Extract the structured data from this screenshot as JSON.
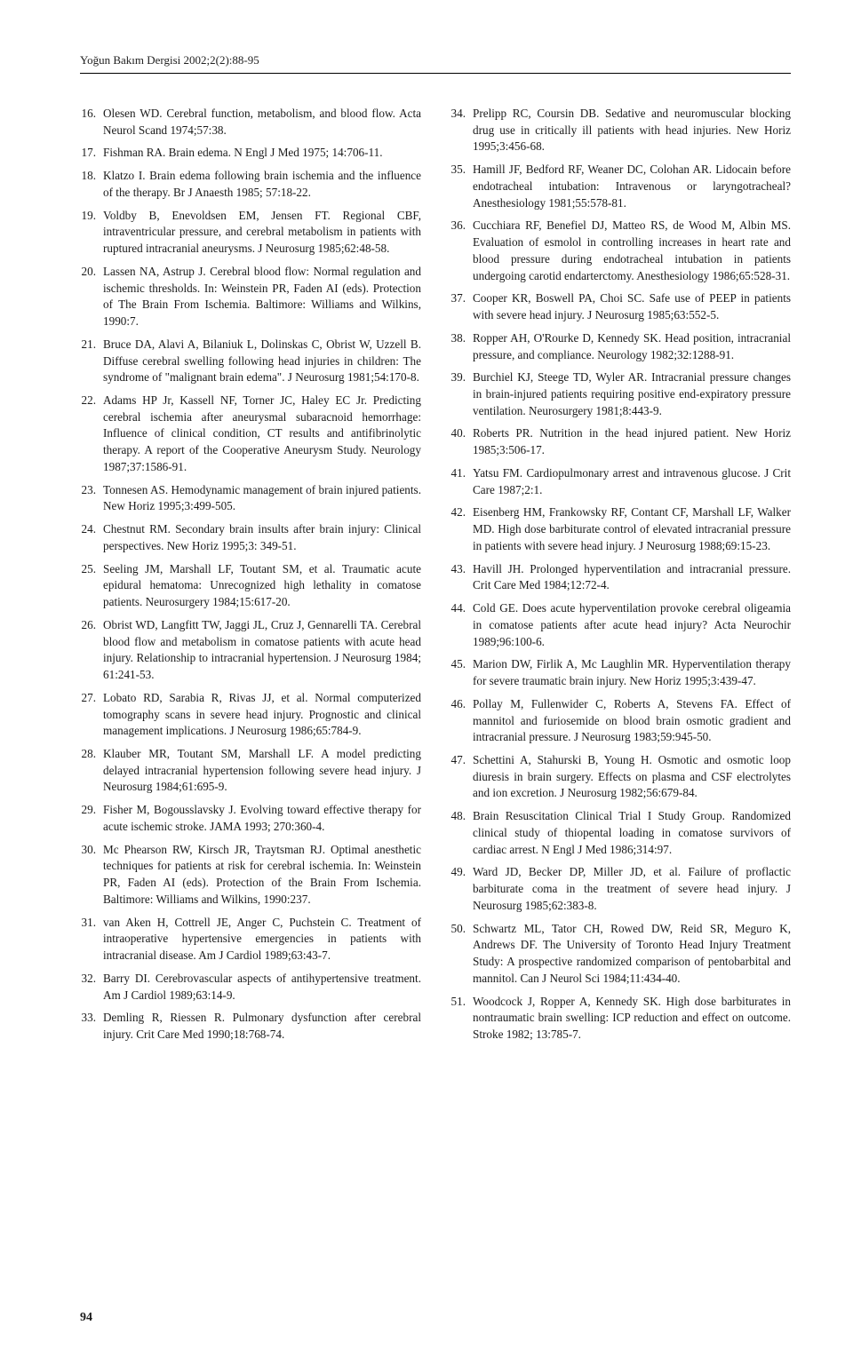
{
  "running_head": "Yoğun Bakım Dergisi 2002;2(2):88-95",
  "page_number": "94",
  "left_refs": [
    {
      "n": "16.",
      "t": "Olesen WD. Cerebral function, metabolism, and blood flow. Acta Neurol Scand 1974;57:38."
    },
    {
      "n": "17.",
      "t": "Fishman RA. Brain edema. N Engl J Med 1975; 14:706-11."
    },
    {
      "n": "18.",
      "t": "Klatzo I. Brain edema following brain ischemia and the influence of the therapy. Br J Anaesth 1985; 57:18-22."
    },
    {
      "n": "19.",
      "t": "Voldby B, Enevoldsen EM, Jensen FT. Regional CBF, intraventricular pressure, and cerebral metabolism in patients with ruptured intracranial aneurysms. J Neurosurg 1985;62:48-58."
    },
    {
      "n": "20.",
      "t": "Lassen NA, Astrup J. Cerebral blood flow: Normal regulation and ischemic thresholds. In: Weinstein PR, Faden AI (eds). Protection of The Brain From Ischemia. Baltimore: Williams and Wilkins, 1990:7."
    },
    {
      "n": "21.",
      "t": "Bruce DA, Alavi A, Bilaniuk L, Dolinskas C, Obrist W, Uzzell B. Diffuse cerebral swelling following head injuries in children: The syndrome of \"malignant brain edema\". J Neurosurg 1981;54:170-8."
    },
    {
      "n": "22.",
      "t": "Adams HP Jr, Kassell NF, Torner JC, Haley EC Jr. Predicting cerebral ischemia after aneurysmal subaracnoid hemorrhage: Influence of clinical condition, CT results and antifibrinolytic therapy. A report of the Cooperative Aneurysm Study. Neurology 1987;37:1586-91."
    },
    {
      "n": "23.",
      "t": "Tonnesen AS. Hemodynamic management of brain injured patients. New Horiz 1995;3:499-505."
    },
    {
      "n": "24.",
      "t": "Chestnut RM. Secondary brain insults after brain injury: Clinical perspectives. New Horiz 1995;3: 349-51."
    },
    {
      "n": "25.",
      "t": "Seeling JM, Marshall LF, Toutant SM, et al. Traumatic acute epidural hematoma: Unrecognized high lethality in comatose patients. Neurosurgery 1984;15:617-20."
    },
    {
      "n": "26.",
      "t": "Obrist WD, Langfitt TW, Jaggi JL, Cruz J, Gennarelli TA. Cerebral blood flow and metabolism in comatose patients with acute head injury. Relationship to intracranial hypertension. J Neurosurg 1984; 61:241-53."
    },
    {
      "n": "27.",
      "t": "Lobato RD, Sarabia R, Rivas JJ, et al. Normal computerized tomography scans in severe head injury. Prognostic and clinical management implications. J Neurosurg 1986;65:784-9."
    },
    {
      "n": "28.",
      "t": "Klauber MR, Toutant SM, Marshall LF. A model predicting delayed intracranial hypertension following severe head injury. J Neurosurg 1984;61:695-9."
    },
    {
      "n": "29.",
      "t": "Fisher M, Bogousslavsky J. Evolving toward effective therapy for acute ischemic stroke. JAMA 1993; 270:360-4."
    },
    {
      "n": "30.",
      "t": "Mc Phearson RW, Kirsch JR, Traytsman RJ. Optimal anesthetic techniques for patients at risk for cerebral ischemia. In: Weinstein PR, Faden AI (eds). Protection of the Brain From Ischemia. Baltimore: Williams and Wilkins, 1990:237."
    },
    {
      "n": "31.",
      "t": "van Aken H, Cottrell JE, Anger C, Puchstein C. Treatment of intraoperative hypertensive emergencies in patients with intracranial disease. Am J Cardiol 1989;63:43-7."
    },
    {
      "n": "32.",
      "t": "Barry DI. Cerebrovascular aspects of antihypertensive treatment. Am J Cardiol 1989;63:14-9."
    },
    {
      "n": "33.",
      "t": "Demling R, Riessen R. Pulmonary dysfunction after cerebral injury. Crit Care Med 1990;18:768-74."
    }
  ],
  "right_refs": [
    {
      "n": "34.",
      "t": "Prelipp RC, Coursin DB. Sedative and neuromuscular blocking drug use in critically ill patients with head injuries. New Horiz 1995;3:456-68."
    },
    {
      "n": "35.",
      "t": "Hamill JF, Bedford RF, Weaner DC, Colohan AR. Lidocain before endotracheal intubation: Intravenous or laryngotracheal? Anesthesiology 1981;55:578-81."
    },
    {
      "n": "36.",
      "t": "Cucchiara RF, Benefiel DJ, Matteo RS, de Wood M, Albin MS. Evaluation of esmolol in controlling increases in heart rate and blood pressure during endotracheal intubation in patients undergoing carotid endarterctomy. Anesthesiology 1986;65:528-31."
    },
    {
      "n": "37.",
      "t": "Cooper KR, Boswell PA, Choi SC. Safe use of PEEP in patients with severe head injury. J Neurosurg 1985;63:552-5."
    },
    {
      "n": "38.",
      "t": "Ropper AH, O'Rourke D, Kennedy SK. Head position, intracranial pressure, and compliance. Neurology 1982;32:1288-91."
    },
    {
      "n": "39.",
      "t": "Burchiel KJ, Steege TD, Wyler AR. Intracranial pressure changes in brain-injured patients requiring positive end-expiratory pressure ventilation. Neurosurgery 1981;8:443-9."
    },
    {
      "n": "40.",
      "t": "Roberts PR. Nutrition in the head injured patient. New Horiz 1985;3:506-17."
    },
    {
      "n": "41.",
      "t": "Yatsu FM. Cardiopulmonary arrest and intravenous glucose. J Crit Care 1987;2:1."
    },
    {
      "n": "42.",
      "t": "Eisenberg HM, Frankowsky RF, Contant CF, Marshall LF, Walker MD. High dose barbiturate control of elevated intracranial pressure in patients with severe head injury. J Neurosurg 1988;69:15-23."
    },
    {
      "n": "43.",
      "t": "Havill JH. Prolonged hyperventilation and intracranial pressure. Crit Care Med 1984;12:72-4."
    },
    {
      "n": "44.",
      "t": "Cold GE. Does acute hyperventilation provoke cerebral oligeamia in comatose patients after acute head injury? Acta Neurochir 1989;96:100-6."
    },
    {
      "n": "45.",
      "t": "Marion DW, Firlik A, Mc Laughlin MR. Hyperventilation therapy for severe traumatic brain injury. New Horiz 1995;3:439-47."
    },
    {
      "n": "46.",
      "t": "Pollay M, Fullenwider C, Roberts A, Stevens FA. Effect of mannitol and furiosemide on blood brain osmotic gradient and intracranial pressure. J Neurosurg 1983;59:945-50."
    },
    {
      "n": "47.",
      "t": "Schettini A, Stahurski B, Young H. Osmotic and osmotic loop diuresis in brain surgery. Effects on plasma and CSF electrolytes and ion excretion. J Neurosurg 1982;56:679-84."
    },
    {
      "n": "48.",
      "t": "Brain Resuscitation Clinical Trial I Study Group. Randomized clinical study of thiopental loading in comatose survivors of cardiac arrest. N Engl J Med 1986;314:97."
    },
    {
      "n": "49.",
      "t": "Ward JD, Becker DP, Miller JD, et al. Failure of proflactic barbiturate coma in the treatment of severe head injury. J Neurosurg 1985;62:383-8."
    },
    {
      "n": "50.",
      "t": "Schwartz ML, Tator CH, Rowed DW, Reid SR, Meguro K, Andrews DF. The University of Toronto Head Injury Treatment Study: A prospective randomized comparison of pentobarbital and mannitol. Can J Neurol Sci 1984;11:434-40."
    },
    {
      "n": "51.",
      "t": "Woodcock J, Ropper A, Kennedy SK. High dose barbiturates in nontraumatic brain swelling: ICP reduction and effect on outcome. Stroke 1982; 13:785-7."
    }
  ]
}
